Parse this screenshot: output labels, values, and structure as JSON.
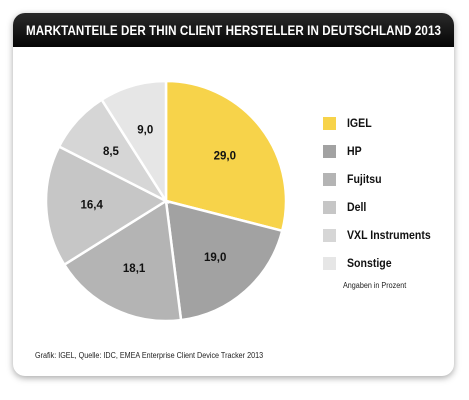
{
  "chart_data": {
    "type": "pie",
    "title": "MARKTANTEILE DER THIN CLIENT HERSTELLER IN DEUTSCHLAND 2013",
    "categories": [
      "IGEL",
      "HP",
      "Fujitsu",
      "Dell",
      "VXL Instruments",
      "Sonstige"
    ],
    "values": [
      29.0,
      19.0,
      18.1,
      16.4,
      8.5,
      9.0
    ],
    "value_labels": [
      "29,0",
      "19,0",
      "18,1",
      "16,4",
      "8,5",
      "9,0"
    ],
    "colors": [
      "#f7d34a",
      "#a2a2a2",
      "#b4b4b4",
      "#c6c6c6",
      "#d6d6d6",
      "#e6e6e6"
    ],
    "units_note": "Angaben in Prozent",
    "source": "Grafik: IGEL, Quelle: IDC, EMEA Enterprise Client Device Tracker 2013",
    "legend_position": "right"
  }
}
